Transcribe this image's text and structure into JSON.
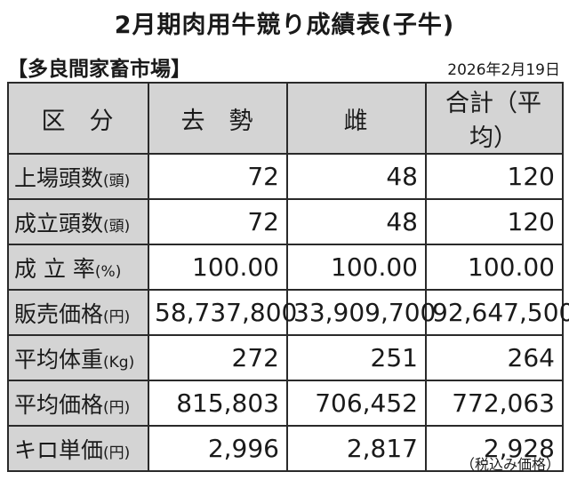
{
  "title": "2月期肉用牛競り成績表(子牛)",
  "market": "【多良間家畜市場】",
  "date": "2026年2月19日",
  "header": {
    "category": "区　分",
    "castrated": "去　勢",
    "female": "雌",
    "total": "合計（平均）"
  },
  "rows": [
    {
      "label": "上場頭数",
      "unit": "(頭)",
      "castrated": "72",
      "female": "48",
      "total": "120"
    },
    {
      "label": "成立頭数",
      "unit": "(頭)",
      "castrated": "72",
      "female": "48",
      "total": "120"
    },
    {
      "label": "成 立 率",
      "unit": "(%)",
      "castrated": "100.00",
      "female": "100.00",
      "total": "100.00"
    },
    {
      "label": "販売価格",
      "unit": "(円)",
      "castrated": "58,737,800",
      "female": "33,909,700",
      "total": "92,647,500"
    },
    {
      "label": "平均体重",
      "unit": "(Kg)",
      "castrated": "272",
      "female": "251",
      "total": "264"
    },
    {
      "label": "平均価格",
      "unit": "(円)",
      "castrated": "815,803",
      "female": "706,452",
      "total": "772,063"
    },
    {
      "label": "キロ単価",
      "unit": "(円)",
      "castrated": "2,996",
      "female": "2,817",
      "total": "2,928"
    }
  ],
  "footnote": "（税込み価格）"
}
